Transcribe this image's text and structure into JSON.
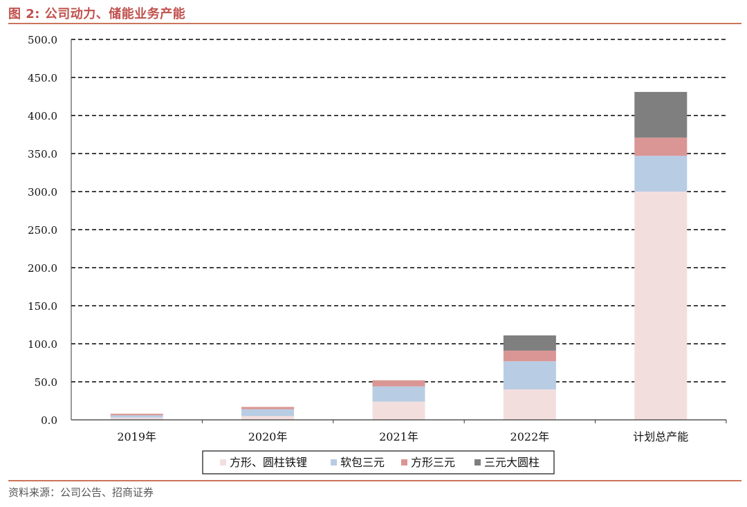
{
  "figure": {
    "title": "图 2:  公司动力、储能业务产能",
    "source": "资料来源：公司公告、招商证券"
  },
  "colors": {
    "title": "#c0504d",
    "rule": "#c9745a",
    "series": [
      "#f3dede",
      "#b8cde4",
      "#d99694",
      "#7f7f7f"
    ]
  },
  "chart_data": {
    "type": "bar",
    "stacked": true,
    "title": "",
    "xlabel": "",
    "ylabel": "",
    "categories": [
      "2019年",
      "2020年",
      "2021年",
      "2022年",
      "计划总产能"
    ],
    "ylim": [
      0,
      500
    ],
    "yticks": [
      "0.0",
      "50.0",
      "100.0",
      "150.0",
      "200.0",
      "250.0",
      "300.0",
      "350.0",
      "400.0",
      "450.0",
      "500.0"
    ],
    "grid": true,
    "legend_position": "bottom",
    "series": [
      {
        "name": "方形、圆柱铁锂",
        "values": [
          3,
          5,
          24,
          40,
          300
        ]
      },
      {
        "name": "软包三元",
        "values": [
          3,
          9,
          20,
          37,
          47
        ]
      },
      {
        "name": "方形三元",
        "values": [
          2,
          3,
          8,
          14,
          24
        ]
      },
      {
        "name": "三元大圆柱",
        "values": [
          0,
          0,
          0,
          20,
          60
        ]
      }
    ]
  }
}
